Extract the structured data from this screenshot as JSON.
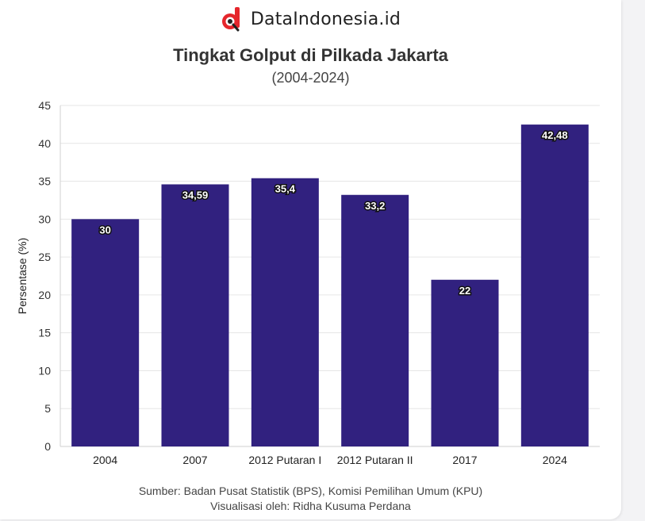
{
  "brand": {
    "name": "DataIndonesia.id",
    "logo_icon": "dataindonesia-logo-icon"
  },
  "chart_data": {
    "type": "bar",
    "title": "Tingkat Golput di Pilkada Jakarta",
    "subtitle": "(2004-2024)",
    "categories": [
      "2004",
      "2007",
      "2012 Putaran I",
      "2012 Putaran II",
      "2017",
      "2024"
    ],
    "values": [
      30,
      34.59,
      35.4,
      33.2,
      22,
      42.48
    ],
    "data_labels": [
      "30",
      "34,59",
      "35,4",
      "33,2",
      "22",
      "42,48"
    ],
    "xlabel": "",
    "ylabel": "Persentase (%)",
    "ylim": [
      0,
      45
    ],
    "yticks": [
      0,
      5,
      10,
      15,
      20,
      25,
      30,
      35,
      40,
      45
    ],
    "grid": true,
    "legend": "none",
    "bar_color": "#31217f"
  },
  "footer": {
    "source": "Sumber: Badan Pusat Statistik (BPS), Komisi Pemilihan Umum (KPU)",
    "credit": "Visualisasi oleh: Ridha Kusuma Perdana"
  },
  "colors": {
    "brand_red": "#e5262c",
    "bar": "#31217f",
    "grid": "#e6e6e6"
  }
}
